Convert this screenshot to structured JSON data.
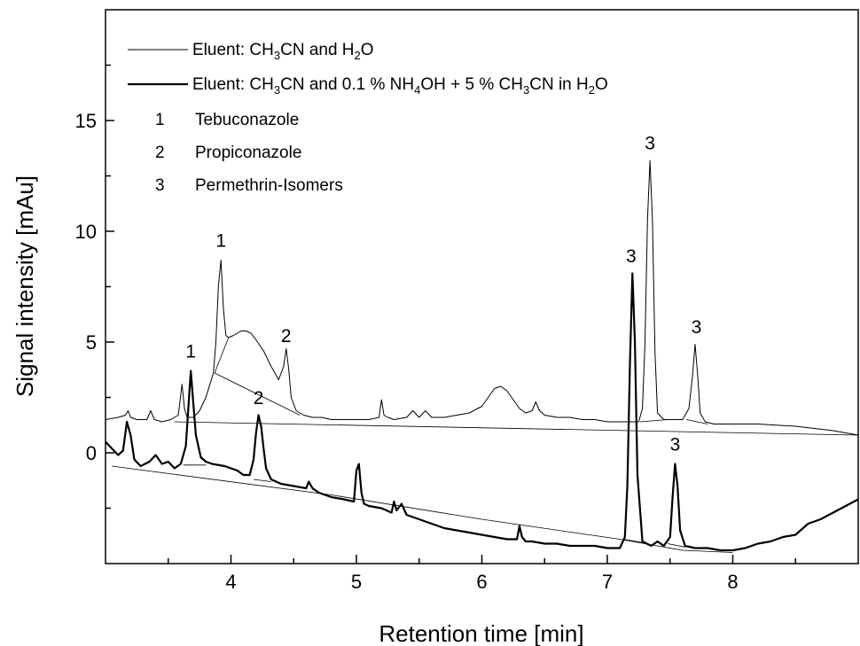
{
  "chart_data": {
    "type": "line",
    "xlabel": "Retention time [min]",
    "ylabel": "Signal intensity [mAu]",
    "xlim": [
      3.0,
      9.0
    ],
    "ylim": [
      -5.0,
      20.0
    ],
    "x_ticks": [
      4,
      5,
      6,
      7,
      8
    ],
    "y_ticks": [
      0,
      5,
      10,
      15
    ],
    "grid": false,
    "legend_position": "top-left",
    "legend": [
      {
        "prefix": "Eluent: CH",
        "sub1": "3",
        "mid": "CN and H",
        "sub2": "2",
        "suffix": "O"
      },
      {
        "prefix": "Eluent: CH",
        "sub1": "3",
        "mid": "CN and 0.1 % NH",
        "sub2": "4",
        "mid2": "OH + 5 % CH",
        "sub3": "3",
        "mid3": "CN in H",
        "sub4": "2",
        "suffix": "O"
      }
    ],
    "peak_key": [
      {
        "num": "1",
        "name": "Tebuconazole"
      },
      {
        "num": "2",
        "name": "Propiconazole"
      },
      {
        "num": "3",
        "name": "Permethrin-Isomers"
      }
    ],
    "annotations": [
      {
        "text": "1",
        "x": 3.92,
        "y": 9.3
      },
      {
        "text": "2",
        "x": 4.44,
        "y": 5.0
      },
      {
        "text": "3",
        "x": 7.34,
        "y": 13.7
      },
      {
        "text": "3",
        "x": 7.71,
        "y": 5.4
      },
      {
        "text": "1",
        "x": 3.68,
        "y": 4.3
      },
      {
        "text": "2",
        "x": 4.22,
        "y": 2.2
      },
      {
        "text": "3",
        "x": 7.19,
        "y": 8.6
      },
      {
        "text": "3",
        "x": 7.54,
        "y": 0.1
      }
    ],
    "series": [
      {
        "stroke": "#000000",
        "width": 1,
        "x": [
          3.0,
          3.1,
          3.16,
          3.18,
          3.2,
          3.25,
          3.33,
          3.36,
          3.39,
          3.45,
          3.52,
          3.58,
          3.61,
          3.63,
          3.65,
          3.7,
          3.75,
          3.8,
          3.86,
          3.88,
          3.9,
          3.92,
          3.94,
          3.96,
          3.98,
          4.02,
          4.08,
          4.12,
          4.16,
          4.2,
          4.26,
          4.32,
          4.38,
          4.42,
          4.44,
          4.46,
          4.48,
          4.52,
          4.58,
          4.65,
          4.72,
          4.8,
          4.9,
          5.0,
          5.1,
          5.18,
          5.2,
          5.22,
          5.25,
          5.3,
          5.4,
          5.45,
          5.5,
          5.55,
          5.6,
          5.7,
          5.8,
          5.9,
          6.0,
          6.05,
          6.1,
          6.15,
          6.2,
          6.25,
          6.3,
          6.35,
          6.4,
          6.43,
          6.46,
          6.5,
          6.6,
          6.7,
          6.8,
          6.9,
          7.0,
          7.1,
          7.2,
          7.25,
          7.28,
          7.3,
          7.32,
          7.34,
          7.36,
          7.38,
          7.4,
          7.45,
          7.5,
          7.55,
          7.6,
          7.65,
          7.68,
          7.7,
          7.72,
          7.74,
          7.78,
          7.85,
          8.0,
          8.2,
          8.5,
          8.8,
          9.0
        ],
        "y": [
          1.5,
          1.6,
          1.7,
          1.9,
          1.6,
          1.5,
          1.5,
          1.9,
          1.5,
          1.4,
          1.5,
          1.7,
          3.1,
          2.0,
          1.6,
          1.6,
          1.9,
          2.5,
          3.6,
          5.0,
          7.5,
          8.7,
          6.5,
          5.3,
          5.2,
          5.3,
          5.5,
          5.5,
          5.4,
          5.1,
          4.6,
          3.9,
          3.3,
          3.9,
          4.7,
          3.8,
          2.5,
          1.9,
          1.7,
          1.6,
          1.6,
          1.5,
          1.5,
          1.5,
          1.5,
          1.6,
          2.4,
          1.7,
          1.6,
          1.5,
          1.6,
          1.9,
          1.6,
          1.9,
          1.6,
          1.6,
          1.7,
          1.8,
          2.1,
          2.5,
          2.9,
          3.0,
          2.8,
          2.4,
          2.0,
          1.8,
          1.9,
          2.3,
          1.9,
          1.7,
          1.6,
          1.6,
          1.5,
          1.5,
          1.4,
          1.4,
          1.4,
          1.4,
          2.0,
          5.0,
          10.5,
          13.2,
          10.5,
          4.5,
          1.8,
          1.5,
          1.5,
          1.5,
          1.5,
          2.0,
          3.5,
          4.9,
          3.5,
          1.8,
          1.4,
          1.3,
          1.3,
          1.3,
          1.2,
          1.0,
          0.8
        ]
      },
      {
        "stroke": "#000000",
        "width": 2.2,
        "x": [
          3.0,
          3.05,
          3.1,
          3.14,
          3.17,
          3.2,
          3.23,
          3.28,
          3.35,
          3.4,
          3.45,
          3.5,
          3.55,
          3.6,
          3.64,
          3.66,
          3.68,
          3.7,
          3.72,
          3.76,
          3.8,
          3.85,
          3.95,
          4.05,
          4.1,
          4.15,
          4.18,
          4.2,
          4.22,
          4.24,
          4.26,
          4.28,
          4.32,
          4.4,
          4.5,
          4.6,
          4.62,
          4.65,
          4.7,
          4.8,
          4.9,
          4.98,
          5.0,
          5.02,
          5.04,
          5.06,
          5.1,
          5.2,
          5.28,
          5.3,
          5.32,
          5.36,
          5.4,
          5.5,
          5.6,
          5.7,
          5.8,
          5.9,
          6.0,
          6.1,
          6.2,
          6.28,
          6.3,
          6.32,
          6.35,
          6.4,
          6.5,
          6.6,
          6.7,
          6.8,
          6.9,
          7.0,
          7.1,
          7.14,
          7.16,
          7.18,
          7.2,
          7.22,
          7.24,
          7.28,
          7.35,
          7.4,
          7.45,
          7.5,
          7.52,
          7.54,
          7.56,
          7.58,
          7.62,
          7.7,
          7.8,
          7.9,
          8.0,
          8.1,
          8.2,
          8.3,
          8.4,
          8.5,
          8.6,
          8.7,
          8.8,
          9.0
        ],
        "y": [
          0.5,
          0.2,
          -0.1,
          0.1,
          1.4,
          0.8,
          -0.3,
          -0.6,
          -0.4,
          -0.1,
          -0.5,
          -0.4,
          -0.7,
          -0.5,
          0.3,
          2.0,
          3.7,
          2.2,
          0.8,
          -0.2,
          -0.4,
          -0.5,
          -0.6,
          -0.8,
          -1.0,
          -1.0,
          -0.3,
          0.9,
          1.7,
          1.2,
          0.2,
          -0.7,
          -1.2,
          -1.4,
          -1.5,
          -1.6,
          -1.3,
          -1.6,
          -1.8,
          -2.0,
          -2.1,
          -2.2,
          -0.8,
          -0.5,
          -1.8,
          -2.3,
          -2.4,
          -2.5,
          -2.7,
          -2.2,
          -2.6,
          -2.3,
          -2.8,
          -3.0,
          -3.2,
          -3.4,
          -3.5,
          -3.6,
          -3.7,
          -3.8,
          -3.9,
          -3.9,
          -3.3,
          -3.8,
          -4.0,
          -4.0,
          -4.1,
          -4.1,
          -4.2,
          -4.2,
          -4.2,
          -4.3,
          -4.3,
          -3.8,
          -1.5,
          4.0,
          8.1,
          5.0,
          -1.0,
          -4.0,
          -4.2,
          -4.0,
          -4.2,
          -3.8,
          -2.0,
          -0.5,
          -1.5,
          -3.5,
          -4.2,
          -4.3,
          -4.3,
          -4.4,
          -4.4,
          -4.3,
          -4.1,
          -4.0,
          -3.8,
          -3.7,
          -3.2,
          -3.0,
          -2.7,
          -2.1
        ]
      }
    ],
    "baselines": [
      {
        "width": 0.8,
        "x": [
          3.87,
          4.55
        ],
        "y": [
          3.6,
          1.7
        ]
      },
      {
        "width": 0.8,
        "x": [
          3.87,
          3.98
        ],
        "y": [
          3.6,
          5.2
        ]
      },
      {
        "width": 0.8,
        "x": [
          7.26,
          7.48
        ],
        "y": [
          1.4,
          1.5
        ]
      },
      {
        "width": 0.8,
        "x": [
          7.63,
          7.8
        ],
        "y": [
          1.5,
          1.3
        ]
      },
      {
        "width": 0.8,
        "x": [
          3.55,
          9.0
        ],
        "y": [
          1.4,
          0.8
        ]
      },
      {
        "width": 0.8,
        "x": [
          3.62,
          3.8
        ],
        "y": [
          -0.55,
          -0.55
        ]
      },
      {
        "width": 0.8,
        "x": [
          4.18,
          4.32
        ],
        "y": [
          -1.2,
          -1.3
        ]
      },
      {
        "width": 0.8,
        "x": [
          3.05,
          4.8,
          6.0,
          7.1,
          7.6,
          8.0
        ],
        "y": [
          -0.6,
          -1.9,
          -3.0,
          -3.9,
          -4.4,
          -4.5
        ]
      },
      {
        "width": 0.8,
        "x": [
          7.13,
          7.28
        ],
        "y": [
          -3.9,
          -4.05
        ]
      },
      {
        "width": 0.8,
        "x": [
          7.48,
          7.62
        ],
        "y": [
          -4.1,
          -4.25
        ]
      }
    ]
  }
}
